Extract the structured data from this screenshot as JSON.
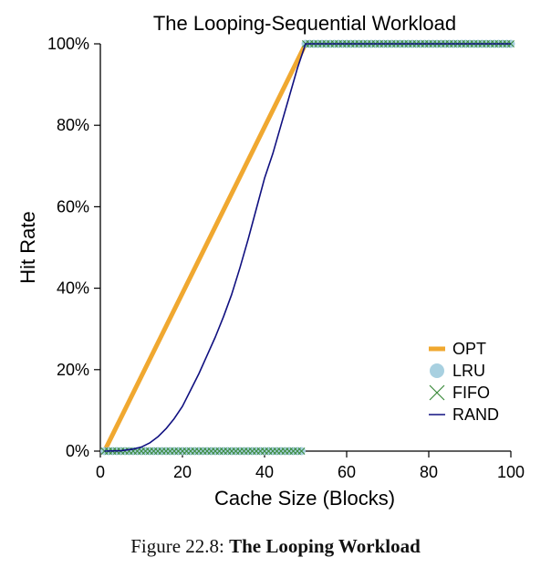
{
  "chart_data": {
    "type": "line",
    "title": "The Looping-Sequential Workload",
    "xlabel": "Cache Size (Blocks)",
    "ylabel": "Hit Rate",
    "xlim": [
      0,
      100
    ],
    "ylim": [
      0,
      100
    ],
    "xticks": [
      "0",
      "20",
      "40",
      "60",
      "80",
      "100"
    ],
    "xtick_values": [
      0,
      20,
      40,
      60,
      80,
      100
    ],
    "yticks": [
      "0%",
      "20%",
      "40%",
      "60%",
      "80%",
      "100%"
    ],
    "ytick_values": [
      0,
      20,
      40,
      60,
      80,
      100
    ],
    "legend_position": "lower-right",
    "series": [
      {
        "name": "OPT",
        "style": "line",
        "color": "#f0a830",
        "x": [
          1,
          50,
          100
        ],
        "y": [
          0,
          100,
          100
        ]
      },
      {
        "name": "LRU",
        "style": "marker-circle",
        "color": "#a8d0e0",
        "rule": "0% for cache size 1-49, 100% for cache size 50-100",
        "x_range": [
          1,
          100
        ],
        "step": 1,
        "threshold": 50
      },
      {
        "name": "FIFO",
        "style": "marker-x",
        "color": "#3a8a3a",
        "rule": "0% for cache size 1-49, 100% for cache size 50-100",
        "x_range": [
          1,
          100
        ],
        "step": 1,
        "threshold": 50
      },
      {
        "name": "RAND",
        "style": "line",
        "color": "#101080",
        "x": [
          1,
          5,
          8,
          10,
          12,
          14,
          16,
          18,
          20,
          22,
          24,
          26,
          28,
          30,
          32,
          34,
          36,
          38,
          40,
          42,
          44,
          46,
          48,
          50,
          100
        ],
        "y": [
          0,
          0.1,
          0.5,
          1,
          2,
          3.5,
          5.5,
          8,
          11,
          15,
          19,
          23.5,
          28,
          33,
          38.5,
          45,
          52,
          59.5,
          67,
          73,
          80,
          87,
          94,
          100,
          100
        ]
      }
    ]
  },
  "caption": {
    "label": "Figure 22.8:",
    "title": "The Looping Workload"
  }
}
